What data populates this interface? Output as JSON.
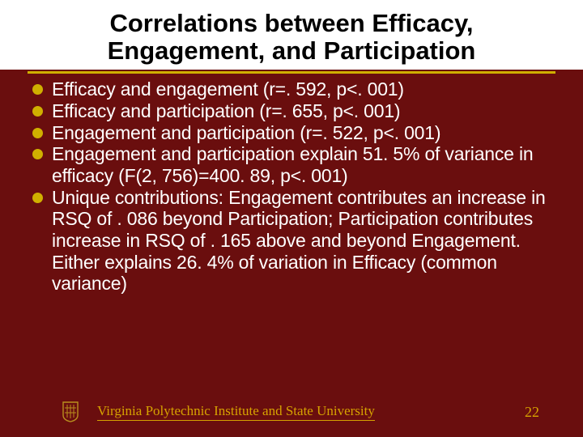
{
  "colors": {
    "slide_bg": "#6a0e0e",
    "title_bg": "#ffffff",
    "title_text": "#000000",
    "divider": "#d0b000",
    "body_text": "#ffffff",
    "bullet": "#d0b000",
    "footer_text": "#d6a300",
    "logo_fill": "#b98f1e",
    "logo_stroke": "#3a2e10"
  },
  "typography": {
    "title_fontsize": 31,
    "title_weight": "bold",
    "body_fontsize": 23,
    "footer_fontsize": 17
  },
  "title": "Correlations between Efficacy, Engagement, and Participation",
  "bullets": [
    "Efficacy and engagement (r=. 592, p<. 001)",
    "Efficacy and participation (r=. 655, p<. 001)",
    "Engagement and participation (r=. 522, p<. 001)",
    "Engagement and participation explain 51. 5% of variance in efficacy (F(2, 756)=400. 89, p<. 001)",
    "Unique contributions: Engagement contributes an increase in RSQ of . 086 beyond Participation; Participation contributes increase in RSQ of . 165 above and beyond Engagement.  Either explains 26. 4% of variation in Efficacy (common variance)"
  ],
  "footer": {
    "institution": "Virginia Polytechnic Institute and State University",
    "page_number": "22"
  }
}
